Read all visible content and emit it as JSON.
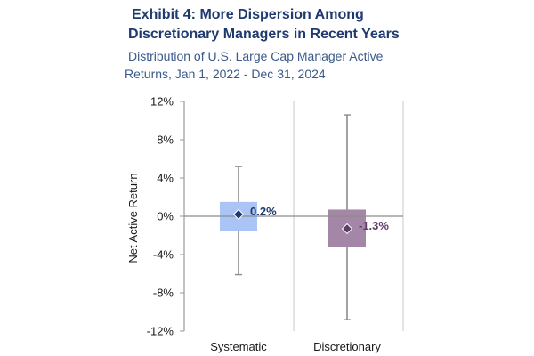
{
  "title_lines": [
    "Exhibit 4: More Dispersion Among",
    "Discretionary Managers in Recent Years"
  ],
  "subtitle_lines": [
    "Distribution of U.S. Large Cap Manager Active",
    "Returns, Jan 1, 2022 - Dec 31, 2024"
  ],
  "chart_data": {
    "type": "box",
    "ylabel": "Net Active Return",
    "ylim": [
      -12,
      12
    ],
    "ytick_values": [
      12,
      8,
      4,
      0,
      -4,
      -8,
      -12
    ],
    "ytick_labels": [
      "12%",
      "8%",
      "4%",
      "0%",
      "-4%",
      "-8%",
      "-12%"
    ],
    "categories": [
      "Systematic",
      "Discretionary"
    ],
    "series": [
      {
        "name": "Systematic",
        "min": -6.1,
        "q1": -1.5,
        "median": 0.2,
        "q3": 1.5,
        "max": 5.2,
        "label": "0.2%",
        "box_color": "#a9c4f5",
        "marker_color": "#1f3a6e",
        "label_color": "#1f3a6e"
      },
      {
        "name": "Discretionary",
        "min": -10.8,
        "q1": -3.2,
        "median": -1.3,
        "q3": 0.7,
        "max": 10.6,
        "label": "-1.3%",
        "box_color": "#a487a6",
        "marker_color": "#5e3d6f",
        "label_color": "#5e3d6f"
      }
    ],
    "grid": false,
    "legend": "none"
  }
}
